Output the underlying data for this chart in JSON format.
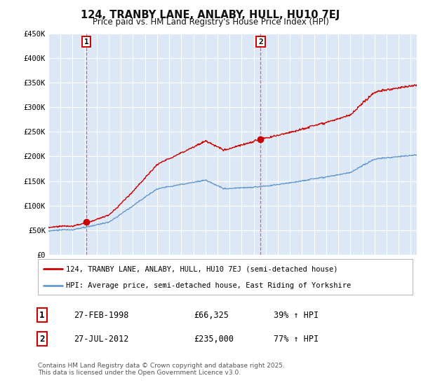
{
  "title": "124, TRANBY LANE, ANLABY, HULL, HU10 7EJ",
  "subtitle": "Price paid vs. HM Land Registry's House Price Index (HPI)",
  "ylim": [
    0,
    450000
  ],
  "yticks": [
    0,
    50000,
    100000,
    150000,
    200000,
    250000,
    300000,
    350000,
    400000,
    450000
  ],
  "ytick_labels": [
    "£0",
    "£50K",
    "£100K",
    "£150K",
    "£200K",
    "£250K",
    "£300K",
    "£350K",
    "£400K",
    "£450K"
  ],
  "xlim_start": 1995.0,
  "xlim_end": 2025.5,
  "sale1_date": 1998.15,
  "sale1_price": 66325,
  "sale1_label": "1",
  "sale1_date_str": "27-FEB-1998",
  "sale1_price_str": "£66,325",
  "sale1_hpi_str": "39% ↑ HPI",
  "sale2_date": 2012.57,
  "sale2_price": 235000,
  "sale2_label": "2",
  "sale2_date_str": "27-JUL-2012",
  "sale2_price_str": "£235,000",
  "sale2_hpi_str": "77% ↑ HPI",
  "line_color_property": "#cc0000",
  "line_color_hpi": "#6699cc",
  "legend_label_property": "124, TRANBY LANE, ANLABY, HULL, HU10 7EJ (semi-detached house)",
  "legend_label_hpi": "HPI: Average price, semi-detached house, East Riding of Yorkshire",
  "footer": "Contains HM Land Registry data © Crown copyright and database right 2025.\nThis data is licensed under the Open Government Licence v3.0.",
  "background_color": "#ffffff",
  "plot_bg_color": "#dce8f5"
}
